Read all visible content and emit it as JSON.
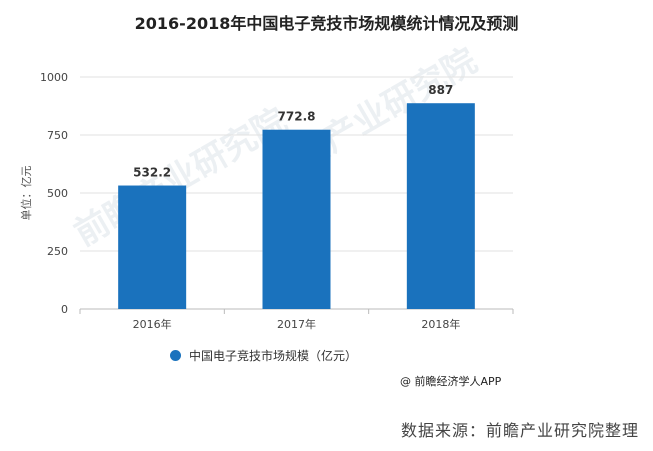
{
  "title": "2016-2018年中国电子竞技市场规模统计情况及预测",
  "credit": "@ 前瞻经济学人APP",
  "source": "数据来源：前瞻产业研究院整理",
  "watermark": "前瞻产业研究院",
  "legend": {
    "label": "中国电子竞技市场规模（亿元）",
    "color": "#1a72bd"
  },
  "chart_data": {
    "type": "bar",
    "title": "2016-2018年中国电子竞技市场规模统计情况及预测",
    "xlabel": "",
    "ylabel": "单位：亿元",
    "categories": [
      "2016年",
      "2017年",
      "2018年"
    ],
    "series": [
      {
        "name": "中国电子竞技市场规模（亿元）",
        "values": [
          532.2,
          772.8,
          887
        ]
      }
    ],
    "value_labels": [
      "532.2",
      "772.8",
      "887"
    ],
    "ylim": [
      0,
      1000
    ],
    "yticks": [
      0,
      250,
      500,
      750,
      1000
    ],
    "grid": true,
    "legend_position": "bottom-left",
    "bar_color": "#1a72bd"
  }
}
